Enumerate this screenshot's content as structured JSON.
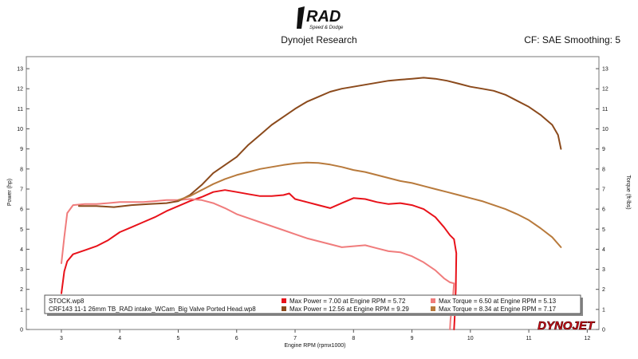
{
  "logo": {
    "text": "RAD",
    "subtext": "Speed & Dodge"
  },
  "header": {
    "title": "Dynojet Research",
    "cf": "CF: SAE Smoothing: 5"
  },
  "brand": "DYNOJET",
  "chart_data": {
    "type": "line",
    "xlabel": "Engine RPM (rpmx1000)",
    "ylabel_left": "Power (hp)",
    "ylabel_right": "Torque (ft-lbs)",
    "xlim": [
      2.4,
      12.2
    ],
    "ylim": [
      0,
      13.6
    ],
    "x_ticks": [
      3,
      4,
      5,
      6,
      7,
      8,
      9,
      10,
      11,
      12
    ],
    "y_ticks": [
      0,
      1,
      2,
      3,
      4,
      5,
      6,
      7,
      8,
      9,
      10,
      11,
      12,
      13
    ],
    "grid": false,
    "legend": {
      "placement": "bottom-left",
      "files": [
        "STOCK.wp8",
        "CRF143 11-1 26mm TB_RAD intake_WCam_Big Valve Ported Head.wp8"
      ],
      "entries": [
        {
          "file": 0,
          "text": "Max Power = 7.00 at Engine RPM = 5.72",
          "color": "#e8121a"
        },
        {
          "file": 0,
          "text": "Max Torque = 6.50 at Engine RPM = 5.13",
          "color": "#f07c7c"
        },
        {
          "file": 1,
          "text": "Max Power = 12.56 at Engine RPM = 9.29",
          "color": "#8b4a1c"
        },
        {
          "file": 1,
          "text": "Max Torque = 8.34 at Engine RPM = 7.17",
          "color": "#b87a3c"
        }
      ]
    },
    "series": [
      {
        "id": "stock-power",
        "color": "#e8121a",
        "width": 2,
        "points": [
          [
            3.0,
            1.8
          ],
          [
            3.05,
            2.9
          ],
          [
            3.1,
            3.4
          ],
          [
            3.2,
            3.75
          ],
          [
            3.4,
            3.95
          ],
          [
            3.6,
            4.15
          ],
          [
            3.8,
            4.45
          ],
          [
            4.0,
            4.85
          ],
          [
            4.2,
            5.1
          ],
          [
            4.4,
            5.35
          ],
          [
            4.6,
            5.6
          ],
          [
            4.8,
            5.9
          ],
          [
            5.0,
            6.15
          ],
          [
            5.2,
            6.4
          ],
          [
            5.4,
            6.6
          ],
          [
            5.6,
            6.85
          ],
          [
            5.8,
            6.95
          ],
          [
            6.0,
            6.85
          ],
          [
            6.2,
            6.75
          ],
          [
            6.4,
            6.65
          ],
          [
            6.6,
            6.65
          ],
          [
            6.8,
            6.7
          ],
          [
            6.9,
            6.78
          ],
          [
            7.0,
            6.5
          ],
          [
            7.2,
            6.35
          ],
          [
            7.4,
            6.2
          ],
          [
            7.6,
            6.05
          ],
          [
            7.8,
            6.3
          ],
          [
            8.0,
            6.55
          ],
          [
            8.2,
            6.5
          ],
          [
            8.4,
            6.35
          ],
          [
            8.6,
            6.25
          ],
          [
            8.8,
            6.3
          ],
          [
            9.0,
            6.2
          ],
          [
            9.2,
            6.0
          ],
          [
            9.4,
            5.6
          ],
          [
            9.55,
            5.1
          ],
          [
            9.65,
            4.7
          ],
          [
            9.72,
            4.5
          ],
          [
            9.76,
            3.8
          ],
          [
            9.75,
            2.0
          ],
          [
            9.73,
            0.5
          ],
          [
            9.72,
            0.0
          ]
        ]
      },
      {
        "id": "stock-torque",
        "color": "#f07c7c",
        "width": 2,
        "points": [
          [
            3.0,
            3.3
          ],
          [
            3.05,
            4.6
          ],
          [
            3.1,
            5.8
          ],
          [
            3.2,
            6.2
          ],
          [
            3.4,
            6.25
          ],
          [
            3.6,
            6.25
          ],
          [
            3.8,
            6.3
          ],
          [
            4.0,
            6.35
          ],
          [
            4.2,
            6.35
          ],
          [
            4.4,
            6.35
          ],
          [
            4.6,
            6.4
          ],
          [
            4.8,
            6.45
          ],
          [
            5.0,
            6.45
          ],
          [
            5.2,
            6.5
          ],
          [
            5.4,
            6.45
          ],
          [
            5.6,
            6.3
          ],
          [
            5.8,
            6.05
          ],
          [
            6.0,
            5.75
          ],
          [
            6.2,
            5.55
          ],
          [
            6.4,
            5.35
          ],
          [
            6.6,
            5.15
          ],
          [
            6.8,
            4.95
          ],
          [
            7.0,
            4.75
          ],
          [
            7.2,
            4.55
          ],
          [
            7.4,
            4.4
          ],
          [
            7.6,
            4.25
          ],
          [
            7.8,
            4.1
          ],
          [
            8.0,
            4.15
          ],
          [
            8.2,
            4.2
          ],
          [
            8.4,
            4.05
          ],
          [
            8.6,
            3.9
          ],
          [
            8.8,
            3.85
          ],
          [
            9.0,
            3.65
          ],
          [
            9.2,
            3.35
          ],
          [
            9.4,
            2.95
          ],
          [
            9.55,
            2.55
          ],
          [
            9.65,
            2.35
          ],
          [
            9.72,
            2.3
          ],
          [
            9.7,
            1.5
          ],
          [
            9.66,
            0.5
          ],
          [
            9.65,
            0.0
          ]
        ]
      },
      {
        "id": "mod-power",
        "color": "#8b4a1c",
        "width": 2,
        "points": [
          [
            3.3,
            6.15
          ],
          [
            3.6,
            6.15
          ],
          [
            3.9,
            6.1
          ],
          [
            4.2,
            6.2
          ],
          [
            4.5,
            6.25
          ],
          [
            4.8,
            6.3
          ],
          [
            5.0,
            6.4
          ],
          [
            5.2,
            6.7
          ],
          [
            5.4,
            7.2
          ],
          [
            5.6,
            7.8
          ],
          [
            5.8,
            8.2
          ],
          [
            6.0,
            8.6
          ],
          [
            6.2,
            9.2
          ],
          [
            6.4,
            9.7
          ],
          [
            6.6,
            10.2
          ],
          [
            6.8,
            10.6
          ],
          [
            7.0,
            11.0
          ],
          [
            7.2,
            11.35
          ],
          [
            7.4,
            11.6
          ],
          [
            7.6,
            11.85
          ],
          [
            7.8,
            12.0
          ],
          [
            8.0,
            12.1
          ],
          [
            8.2,
            12.2
          ],
          [
            8.4,
            12.3
          ],
          [
            8.6,
            12.4
          ],
          [
            8.8,
            12.45
          ],
          [
            9.0,
            12.5
          ],
          [
            9.2,
            12.55
          ],
          [
            9.4,
            12.5
          ],
          [
            9.6,
            12.4
          ],
          [
            9.8,
            12.25
          ],
          [
            10.0,
            12.1
          ],
          [
            10.2,
            12.0
          ],
          [
            10.4,
            11.9
          ],
          [
            10.6,
            11.7
          ],
          [
            10.8,
            11.4
          ],
          [
            11.0,
            11.1
          ],
          [
            11.2,
            10.7
          ],
          [
            11.4,
            10.2
          ],
          [
            11.5,
            9.7
          ],
          [
            11.55,
            9.0
          ]
        ]
      },
      {
        "id": "mod-torque",
        "color": "#b87a3c",
        "width": 2,
        "points": [
          [
            5.0,
            6.45
          ],
          [
            5.2,
            6.65
          ],
          [
            5.4,
            6.95
          ],
          [
            5.6,
            7.25
          ],
          [
            5.8,
            7.5
          ],
          [
            6.0,
            7.7
          ],
          [
            6.2,
            7.85
          ],
          [
            6.4,
            8.0
          ],
          [
            6.6,
            8.1
          ],
          [
            6.8,
            8.2
          ],
          [
            7.0,
            8.28
          ],
          [
            7.2,
            8.32
          ],
          [
            7.4,
            8.3
          ],
          [
            7.6,
            8.22
          ],
          [
            7.8,
            8.1
          ],
          [
            8.0,
            7.95
          ],
          [
            8.2,
            7.85
          ],
          [
            8.4,
            7.7
          ],
          [
            8.6,
            7.55
          ],
          [
            8.8,
            7.4
          ],
          [
            9.0,
            7.3
          ],
          [
            9.2,
            7.15
          ],
          [
            9.4,
            7.0
          ],
          [
            9.6,
            6.85
          ],
          [
            9.8,
            6.7
          ],
          [
            10.0,
            6.55
          ],
          [
            10.2,
            6.4
          ],
          [
            10.4,
            6.2
          ],
          [
            10.6,
            6.0
          ],
          [
            10.8,
            5.75
          ],
          [
            11.0,
            5.45
          ],
          [
            11.2,
            5.05
          ],
          [
            11.4,
            4.6
          ],
          [
            11.55,
            4.1
          ]
        ]
      }
    ]
  }
}
